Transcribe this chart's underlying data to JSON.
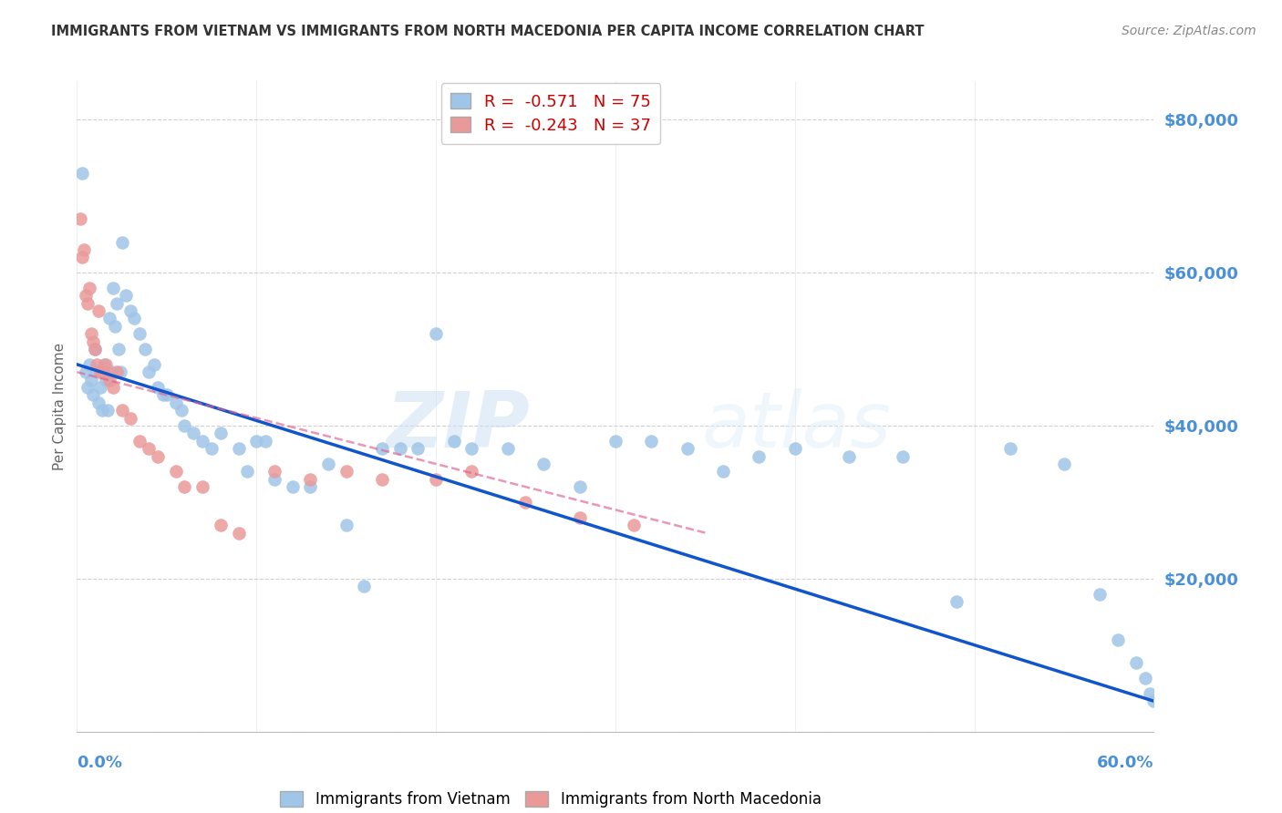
{
  "title": "IMMIGRANTS FROM VIETNAM VS IMMIGRANTS FROM NORTH MACEDONIA PER CAPITA INCOME CORRELATION CHART",
  "source": "Source: ZipAtlas.com",
  "ylabel": "Per Capita Income",
  "legend_r_vietnam": "R =  -0.571",
  "legend_n_vietnam": "N = 75",
  "legend_r_macedonia": "R =  -0.243",
  "legend_n_macedonia": "N = 37",
  "legend_label_vietnam": "Immigrants from Vietnam",
  "legend_label_macedonia": "Immigrants from North Macedonia",
  "color_vietnam": "#9fc5e8",
  "color_macedonia": "#ea9999",
  "color_trendline_vietnam": "#1155cc",
  "color_trendline_macedonia": "#e06090",
  "title_color": "#333333",
  "source_color": "#888888",
  "axis_label_color": "#4a90d9",
  "watermark_zip": "ZIP",
  "watermark_atlas": "atlas",
  "xlim": [
    0.0,
    0.6
  ],
  "ylim": [
    0,
    85000
  ],
  "vietnam_x": [
    0.003,
    0.005,
    0.006,
    0.007,
    0.008,
    0.009,
    0.01,
    0.011,
    0.012,
    0.013,
    0.014,
    0.015,
    0.016,
    0.017,
    0.018,
    0.019,
    0.02,
    0.021,
    0.022,
    0.023,
    0.024,
    0.025,
    0.027,
    0.03,
    0.032,
    0.035,
    0.038,
    0.04,
    0.043,
    0.045,
    0.048,
    0.05,
    0.055,
    0.058,
    0.06,
    0.065,
    0.07,
    0.075,
    0.08,
    0.09,
    0.095,
    0.1,
    0.105,
    0.11,
    0.12,
    0.13,
    0.14,
    0.15,
    0.16,
    0.17,
    0.18,
    0.19,
    0.2,
    0.21,
    0.22,
    0.24,
    0.26,
    0.28,
    0.3,
    0.32,
    0.34,
    0.36,
    0.38,
    0.4,
    0.43,
    0.46,
    0.49,
    0.52,
    0.55,
    0.57,
    0.58,
    0.59,
    0.595,
    0.598,
    0.6
  ],
  "vietnam_y": [
    73000,
    47000,
    45000,
    48000,
    46000,
    44000,
    50000,
    47000,
    43000,
    45000,
    42000,
    48000,
    46000,
    42000,
    54000,
    47000,
    58000,
    53000,
    56000,
    50000,
    47000,
    64000,
    57000,
    55000,
    54000,
    52000,
    50000,
    47000,
    48000,
    45000,
    44000,
    44000,
    43000,
    42000,
    40000,
    39000,
    38000,
    37000,
    39000,
    37000,
    34000,
    38000,
    38000,
    33000,
    32000,
    32000,
    35000,
    27000,
    19000,
    37000,
    37000,
    37000,
    52000,
    38000,
    37000,
    37000,
    35000,
    32000,
    38000,
    38000,
    37000,
    34000,
    36000,
    37000,
    36000,
    36000,
    17000,
    37000,
    35000,
    18000,
    12000,
    9000,
    7000,
    5000,
    4000
  ],
  "macedonia_x": [
    0.002,
    0.003,
    0.004,
    0.005,
    0.006,
    0.007,
    0.008,
    0.009,
    0.01,
    0.011,
    0.012,
    0.013,
    0.014,
    0.015,
    0.016,
    0.018,
    0.02,
    0.022,
    0.025,
    0.03,
    0.035,
    0.04,
    0.045,
    0.055,
    0.06,
    0.07,
    0.08,
    0.09,
    0.11,
    0.13,
    0.15,
    0.17,
    0.2,
    0.22,
    0.25,
    0.28,
    0.31
  ],
  "macedonia_y": [
    67000,
    62000,
    63000,
    57000,
    56000,
    58000,
    52000,
    51000,
    50000,
    48000,
    55000,
    47000,
    47000,
    47000,
    48000,
    46000,
    45000,
    47000,
    42000,
    41000,
    38000,
    37000,
    36000,
    34000,
    32000,
    32000,
    27000,
    26000,
    34000,
    33000,
    34000,
    33000,
    33000,
    34000,
    30000,
    28000,
    27000
  ],
  "trendline_vietnam_x0": 0.0,
  "trendline_vietnam_x1": 0.6,
  "trendline_vietnam_y0": 48000,
  "trendline_vietnam_y1": 4000,
  "trendline_macedonia_x0": 0.0,
  "trendline_macedonia_x1": 0.35,
  "trendline_macedonia_y0": 47000,
  "trendline_macedonia_y1": 26000
}
